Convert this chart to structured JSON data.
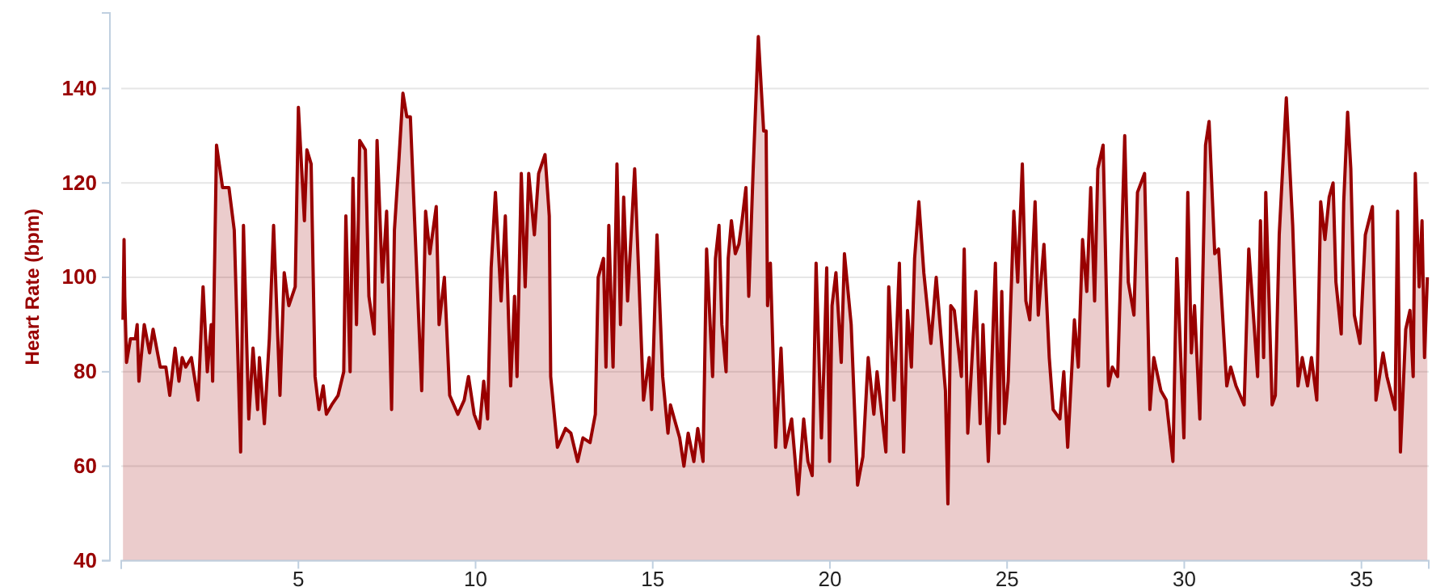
{
  "chart_data": {
    "type": "area",
    "ylabel": "Heart Rate (bpm)",
    "x": [
      0.05,
      0.08,
      0.1,
      0.15,
      0.26,
      0.4,
      0.45,
      0.5,
      0.65,
      0.8,
      0.9,
      1.1,
      1.26,
      1.37,
      1.52,
      1.63,
      1.72,
      1.82,
      1.98,
      2.17,
      2.31,
      2.43,
      2.54,
      2.58,
      2.69,
      2.86,
      3.04,
      3.19,
      3.37,
      3.45,
      3.6,
      3.72,
      3.85,
      3.9,
      4.04,
      4.18,
      4.3,
      4.48,
      4.6,
      4.73,
      4.91,
      5.0,
      5.17,
      5.24,
      5.36,
      5.47,
      5.58,
      5.7,
      5.79,
      5.94,
      6.12,
      6.28,
      6.34,
      6.46,
      6.54,
      6.64,
      6.73,
      6.89,
      6.99,
      7.14,
      7.22,
      7.37,
      7.49,
      7.63,
      7.71,
      7.83,
      7.95,
      8.06,
      8.16,
      8.28,
      8.48,
      8.59,
      8.71,
      8.89,
      8.97,
      9.12,
      9.27,
      9.5,
      9.68,
      9.8,
      9.96,
      10.11,
      10.23,
      10.34,
      10.44,
      10.56,
      10.72,
      10.84,
      10.99,
      11.1,
      11.17,
      11.29,
      11.4,
      11.5,
      11.66,
      11.78,
      11.96,
      12.08,
      12.12,
      12.31,
      12.54,
      12.69,
      12.88,
      13.03,
      13.23,
      13.38,
      13.46,
      13.61,
      13.68,
      13.76,
      13.88,
      13.99,
      14.09,
      14.18,
      14.29,
      14.49,
      14.74,
      14.9,
      14.97,
      15.12,
      15.28,
      15.43,
      15.5,
      15.61,
      15.76,
      15.88,
      16.0,
      16.16,
      16.27,
      16.42,
      16.52,
      16.69,
      16.77,
      16.87,
      16.95,
      17.07,
      17.13,
      17.22,
      17.33,
      17.43,
      17.52,
      17.63,
      17.71,
      17.83,
      17.98,
      18.13,
      18.2,
      18.24,
      18.32,
      18.47,
      18.62,
      18.74,
      18.92,
      19.1,
      19.26,
      19.38,
      19.5,
      19.61,
      19.76,
      19.83,
      19.91,
      19.99,
      20.06,
      20.17,
      20.32,
      20.41,
      20.6,
      20.78,
      20.93,
      21.08,
      21.24,
      21.33,
      21.58,
      21.66,
      21.81,
      21.96,
      22.08,
      22.19,
      22.3,
      22.39,
      22.51,
      22.65,
      22.85,
      23.0,
      23.26,
      23.33,
      23.41,
      23.51,
      23.71,
      23.79,
      23.89,
      24.02,
      24.12,
      24.24,
      24.32,
      24.47,
      24.67,
      24.77,
      24.85,
      24.93,
      25.03,
      25.19,
      25.3,
      25.43,
      25.53,
      25.64,
      25.79,
      25.88,
      26.04,
      26.19,
      26.3,
      26.49,
      26.6,
      26.71,
      26.9,
      27.01,
      27.13,
      27.25,
      27.36,
      27.47,
      27.56,
      27.71,
      27.86,
      27.97,
      28.12,
      28.32,
      28.42,
      28.58,
      28.68,
      28.88,
      29.03,
      29.14,
      29.34,
      29.49,
      29.68,
      29.79,
      29.99,
      30.1,
      30.2,
      30.29,
      30.44,
      30.6,
      30.7,
      30.86,
      30.97,
      31.2,
      31.31,
      31.46,
      31.69,
      31.82,
      31.97,
      32.07,
      32.15,
      32.24,
      32.3,
      32.48,
      32.57,
      32.68,
      32.88,
      33.06,
      33.21,
      33.33,
      33.48,
      33.59,
      33.74,
      33.85,
      33.97,
      34.09,
      34.2,
      34.28,
      34.43,
      34.5,
      34.61,
      34.7,
      34.8,
      34.96,
      35.11,
      35.31,
      35.41,
      35.61,
      35.72,
      35.95,
      36.02,
      36.1,
      36.25,
      36.37,
      36.46,
      36.52,
      36.63,
      36.71,
      36.78,
      36.86
    ],
    "series": [
      {
        "color": "#990000",
        "values": [
          91,
          108,
          96,
          82,
          87,
          87,
          90,
          78,
          90,
          84,
          89,
          81,
          81,
          75,
          85,
          78,
          83,
          81,
          83,
          74,
          98,
          80,
          90,
          78,
          128,
          119,
          119,
          110,
          63,
          111,
          70,
          85,
          72,
          83,
          69,
          87,
          111,
          75,
          101,
          94,
          98,
          136,
          112,
          127,
          124,
          79,
          72,
          77,
          71,
          73,
          75,
          80,
          113,
          80,
          121,
          90,
          129,
          127,
          96,
          88,
          129,
          99,
          114,
          72,
          110,
          124,
          139,
          134,
          134,
          112,
          76,
          114,
          105,
          115,
          90,
          100,
          75,
          71,
          74,
          79,
          71,
          68,
          78,
          70,
          102,
          118,
          95,
          113,
          77,
          96,
          79,
          122,
          98,
          122,
          109,
          122,
          126,
          113,
          79,
          64,
          68,
          67,
          61,
          66,
          65,
          71,
          100,
          104,
          81,
          111,
          81,
          124,
          90,
          117,
          95,
          123,
          74,
          83,
          72,
          109,
          79,
          67,
          73,
          70,
          66,
          60,
          67,
          61,
          68,
          61,
          106,
          79,
          104,
          111,
          90,
          80,
          104,
          112,
          105,
          107,
          112,
          119,
          96,
          122,
          151,
          131,
          131,
          94,
          103,
          64,
          85,
          64,
          70,
          54,
          70,
          61,
          58,
          103,
          66,
          81,
          102,
          61,
          94,
          101,
          82,
          105,
          90,
          56,
          62,
          83,
          71,
          80,
          63,
          98,
          74,
          103,
          63,
          93,
          81,
          104,
          116,
          101,
          86,
          100,
          76,
          52,
          94,
          93,
          79,
          106,
          67,
          84,
          97,
          69,
          90,
          61,
          103,
          67,
          97,
          69,
          78,
          114,
          99,
          124,
          95,
          91,
          116,
          92,
          107,
          83,
          72,
          70,
          80,
          64,
          91,
          81,
          108,
          97,
          119,
          95,
          123,
          128,
          77,
          81,
          79,
          130,
          99,
          92,
          118,
          122,
          72,
          83,
          76,
          74,
          61,
          104,
          66,
          118,
          84,
          94,
          70,
          128,
          133,
          105,
          106,
          77,
          81,
          77,
          73,
          106,
          90,
          79,
          112,
          83,
          118,
          73,
          75,
          109,
          138,
          111,
          77,
          83,
          77,
          83,
          74,
          116,
          108,
          117,
          120,
          99,
          88,
          116,
          135,
          123,
          92,
          86,
          109,
          115,
          74,
          84,
          79,
          72,
          114,
          63,
          89,
          93,
          79,
          122,
          98,
          112,
          83,
          100
        ]
      }
    ],
    "xlim": [
      0,
      36.9
    ],
    "ylim": [
      40,
      156
    ],
    "xticks": [
      {
        "value": 0,
        "label": null
      },
      5,
      10,
      15,
      20,
      25,
      30,
      35
    ],
    "yticks": [
      40,
      60,
      80,
      100,
      120,
      140
    ],
    "grid": "y",
    "line_style": "solid"
  }
}
